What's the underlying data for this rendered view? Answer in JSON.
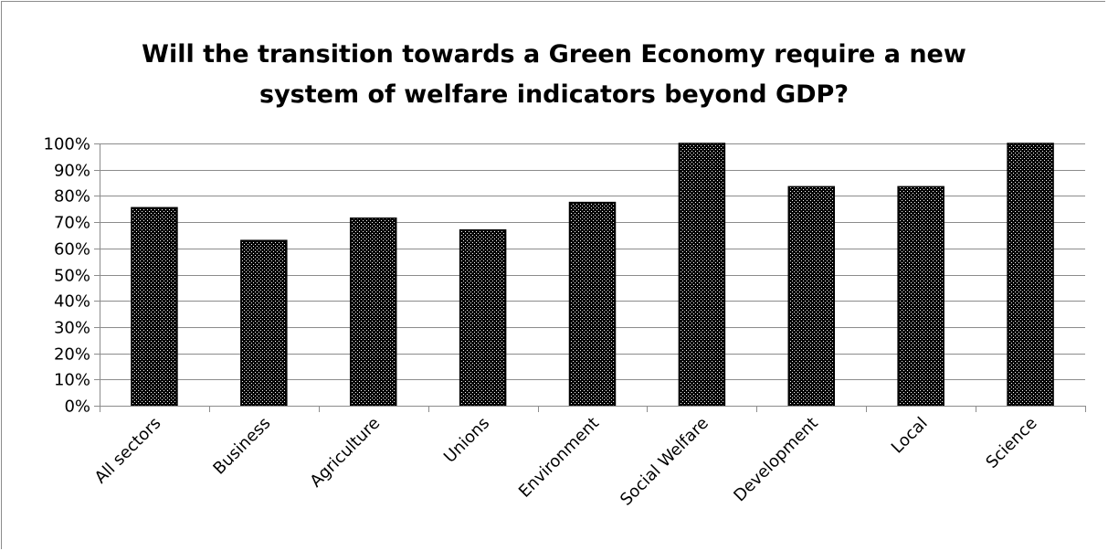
{
  "chart_data": {
    "type": "bar",
    "title": "Will the transition towards a Green Economy require a new system of welfare indicators beyond GDP?",
    "title_lines": [
      "Will the transition towards a Green Economy require a new",
      "system of welfare indicators beyond GDP?"
    ],
    "xlabel": "",
    "ylabel": "",
    "categories": [
      "All sectors",
      "Business",
      "Agriculture",
      "Unions",
      "Environment",
      "Social Welfare",
      "Development",
      "Local",
      "Science"
    ],
    "values": [
      0.755,
      0.63,
      0.715,
      0.67,
      0.775,
      1.0,
      0.835,
      0.835,
      1.0
    ],
    "ylim": [
      0,
      1
    ],
    "y_ticks": [
      0,
      0.1,
      0.2,
      0.3,
      0.4,
      0.5,
      0.6,
      0.7,
      0.8,
      0.9,
      1.0
    ],
    "y_tick_labels": [
      "0%",
      "10%",
      "20%",
      "30%",
      "40%",
      "50%",
      "60%",
      "70%",
      "80%",
      "90%",
      "100%"
    ],
    "grid": true,
    "legend": "none",
    "colors": {
      "bar_fill": "#000000",
      "bar_dots": "#ffffff",
      "grid": "#8c8c8c",
      "axis": "#8c8c8c"
    }
  }
}
